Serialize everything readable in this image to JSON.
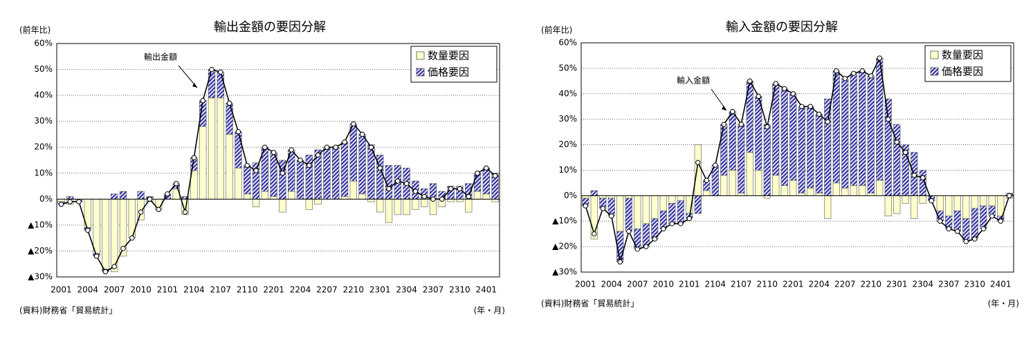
{
  "chart_data": [
    {
      "type": "stacked_bar_line",
      "title": "輸出金額の要因分解",
      "y_label": "(前年比)",
      "x_label": "(年・月)",
      "source": "(資料)財務省「貿易統計」",
      "categories": [
        "2001",
        null,
        null,
        "2004",
        null,
        null,
        "2007",
        null,
        null,
        "2010",
        null,
        null,
        "2101",
        null,
        null,
        "2104",
        null,
        null,
        "2107",
        null,
        null,
        "2110",
        null,
        null,
        "2201",
        null,
        null,
        "2204",
        null,
        null,
        "2207",
        null,
        null,
        "2210",
        null,
        null,
        "2301",
        null,
        null,
        "2304",
        null,
        null,
        "2307",
        null,
        null,
        "2310",
        null,
        null,
        "2401",
        null
      ],
      "series": [
        {
          "name": "数量要因",
          "color": "#ffffcc",
          "values": [
            -1,
            -2,
            0,
            -11,
            -21,
            -27,
            -28,
            -22,
            -15,
            -8,
            -1,
            -4,
            0,
            4,
            -6,
            11,
            28,
            39,
            39,
            25,
            12,
            2,
            -3,
            3,
            1,
            -5,
            3,
            0,
            -4,
            -2,
            0,
            0,
            1,
            7,
            2,
            -1,
            -5,
            -9,
            -6,
            -6,
            -4,
            -3,
            -6,
            -3,
            -1,
            -1,
            -5,
            3,
            2,
            -1
          ]
        },
        {
          "name": "価格要因",
          "color": "#3a3aa8",
          "hatch": true,
          "values": [
            -1,
            1,
            -1,
            -1,
            -1,
            -1,
            2,
            3,
            0,
            3,
            1,
            0,
            2,
            2,
            1,
            5,
            10,
            11,
            10,
            12,
            14,
            11,
            14,
            17,
            17,
            15,
            16,
            15,
            17,
            19,
            20,
            20,
            21,
            22,
            23,
            21,
            17,
            13,
            13,
            12,
            7,
            4,
            6,
            3,
            5,
            5,
            6,
            7,
            10,
            10
          ]
        },
        {
          "name": "輸出金額",
          "type": "line",
          "color": "#000000",
          "values": [
            -2,
            -1,
            -1,
            -12,
            -22,
            -28,
            -26,
            -19,
            -15,
            -5,
            0,
            -4,
            2,
            6,
            -5,
            16,
            38,
            50,
            49,
            37,
            26,
            13,
            11,
            20,
            18,
            10,
            19,
            15,
            13,
            17,
            20,
            20,
            22,
            29,
            25,
            20,
            12,
            4,
            7,
            6,
            3,
            1,
            0,
            0,
            4,
            4,
            1,
            10,
            12,
            9
          ]
        }
      ],
      "ylim": [
        -30,
        60
      ],
      "yticks": [
        {
          "value": -30,
          "label": "▲30%"
        },
        {
          "value": -20,
          "label": "▲20%"
        },
        {
          "value": -10,
          "label": "▲10%"
        },
        {
          "value": 0,
          "label": "0%"
        },
        {
          "value": 10,
          "label": "10%"
        },
        {
          "value": 20,
          "label": "20%"
        },
        {
          "value": 30,
          "label": "30%"
        },
        {
          "value": 40,
          "label": "40%"
        },
        {
          "value": 50,
          "label": "50%"
        },
        {
          "value": 60,
          "label": "60%"
        }
      ],
      "grid": true,
      "legend": "upper right"
    },
    {
      "type": "stacked_bar_line",
      "title": "輸入金額の要因分解",
      "y_label": "(前年比)",
      "x_label": "(年・月)",
      "source": "(資料)財務省「貿易統計」",
      "categories": [
        "2001",
        null,
        null,
        "2004",
        null,
        null,
        "2007",
        null,
        null,
        "2010",
        null,
        null,
        "2101",
        null,
        null,
        "2104",
        null,
        null,
        "2107",
        null,
        null,
        "2110",
        null,
        null,
        "2201",
        null,
        null,
        "2204",
        null,
        null,
        "2207",
        null,
        null,
        "2210",
        null,
        null,
        "2301",
        null,
        null,
        "2304",
        null,
        null,
        "2307",
        null,
        null,
        "2310",
        null,
        null,
        "2401",
        null
      ],
      "series": [
        {
          "name": "数量要因",
          "color": "#ffffcc",
          "values": [
            -1,
            -17,
            -1,
            -1,
            -14,
            -1,
            -13,
            -11,
            -9,
            -6,
            -3,
            -2,
            -7,
            20,
            2,
            0,
            8,
            10,
            1,
            17,
            10,
            -1,
            8,
            4,
            6,
            1,
            3,
            1,
            -9,
            5,
            3,
            4,
            4,
            1,
            6,
            -8,
            -7,
            -3,
            -9,
            -3,
            0,
            -6,
            -8,
            -6,
            -9,
            -5,
            -4,
            -4,
            -8,
            -1
          ]
        },
        {
          "name": "価格要因",
          "color": "#3a3aa8",
          "hatch": true,
          "values": [
            -3,
            2,
            -4,
            -7,
            -12,
            -13,
            -8,
            -9,
            -8,
            -7,
            -8,
            -9,
            -2,
            -7,
            4,
            12,
            20,
            23,
            27,
            28,
            29,
            28,
            36,
            38,
            34,
            34,
            32,
            31,
            38,
            44,
            43,
            44,
            45,
            46,
            48,
            38,
            28,
            20,
            17,
            10,
            -2,
            -4,
            -5,
            -8,
            -9,
            -12,
            -9,
            -4,
            -2,
            1
          ]
        },
        {
          "name": "輸入金額",
          "type": "line",
          "color": "#000000",
          "values": [
            -4,
            -15,
            -5,
            -8,
            -26,
            -14,
            -21,
            -20,
            -17,
            -13,
            -11,
            -11,
            -9,
            13,
            6,
            12,
            28,
            33,
            28,
            45,
            39,
            27,
            44,
            42,
            40,
            35,
            35,
            32,
            29,
            49,
            46,
            48,
            49,
            47,
            54,
            30,
            21,
            17,
            8,
            7,
            -2,
            -10,
            -13,
            -14,
            -18,
            -17,
            -13,
            -8,
            -10,
            0
          ]
        }
      ],
      "ylim": [
        -30,
        60
      ],
      "yticks": [
        {
          "value": -30,
          "label": "▲30%"
        },
        {
          "value": -20,
          "label": "▲20%"
        },
        {
          "value": -10,
          "label": "▲10%"
        },
        {
          "value": 0,
          "label": "0%"
        },
        {
          "value": 10,
          "label": "10%"
        },
        {
          "value": 20,
          "label": "20%"
        },
        {
          "value": 30,
          "label": "30%"
        },
        {
          "value": 40,
          "label": "40%"
        },
        {
          "value": 50,
          "label": "50%"
        },
        {
          "value": 60,
          "label": "60%"
        }
      ],
      "grid": true,
      "legend": "upper right"
    }
  ]
}
